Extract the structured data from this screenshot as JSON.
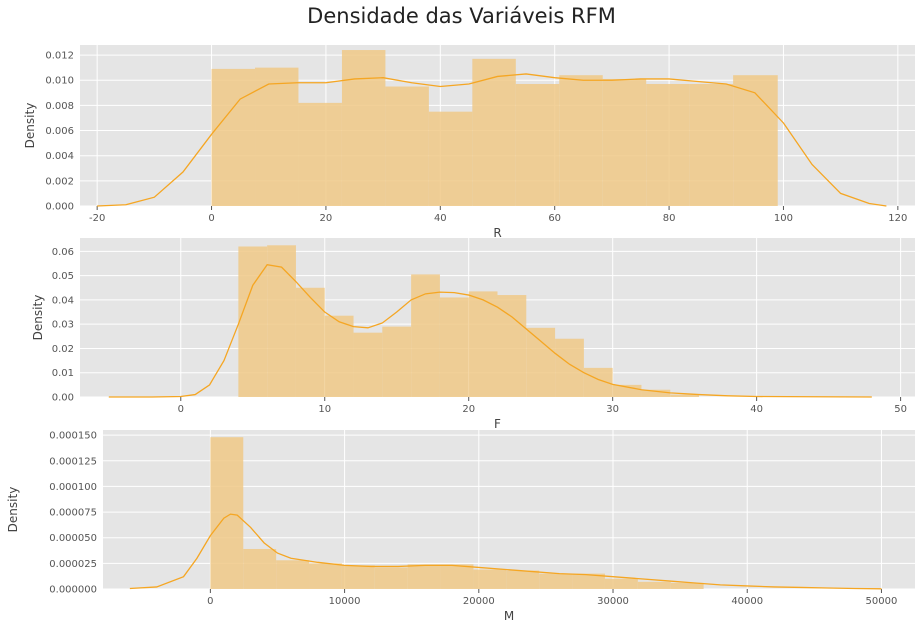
{
  "title": "Densidade das Variáveis RFM",
  "colors": {
    "background": "#e5e5e5",
    "grid": "#ffffff",
    "hist_fill": "#f0c987",
    "kde": "#f5a623",
    "text": "#555555"
  },
  "chart_data": [
    {
      "type": "bar",
      "name": "R",
      "xlabel": "R",
      "ylabel": "Density",
      "xlim": [
        -23,
        123
      ],
      "ylim": [
        0,
        0.0128
      ],
      "xticks": [
        -20,
        0,
        20,
        40,
        60,
        80,
        100,
        120
      ],
      "yticks": [
        0.0,
        0.002,
        0.004,
        0.006,
        0.008,
        0.01,
        0.012
      ],
      "ytick_labels": [
        "0.000",
        "0.002",
        "0.004",
        "0.006",
        "0.008",
        "0.010",
        "0.012"
      ],
      "bins": [
        {
          "x0": 0,
          "x1": 7.6,
          "y": 0.0109
        },
        {
          "x0": 7.6,
          "x1": 15.2,
          "y": 0.011
        },
        {
          "x0": 15.2,
          "x1": 22.8,
          "y": 0.0082
        },
        {
          "x0": 22.8,
          "x1": 30.4,
          "y": 0.0124
        },
        {
          "x0": 30.4,
          "x1": 38.0,
          "y": 0.0095
        },
        {
          "x0": 38.0,
          "x1": 45.6,
          "y": 0.0075
        },
        {
          "x0": 45.6,
          "x1": 53.2,
          "y": 0.0117
        },
        {
          "x0": 53.2,
          "x1": 60.8,
          "y": 0.0097
        },
        {
          "x0": 60.8,
          "x1": 68.4,
          "y": 0.0104
        },
        {
          "x0": 68.4,
          "x1": 76.0,
          "y": 0.0101
        },
        {
          "x0": 76.0,
          "x1": 83.6,
          "y": 0.0097
        },
        {
          "x0": 83.6,
          "x1": 91.2,
          "y": 0.0097
        },
        {
          "x0": 91.2,
          "x1": 99.0,
          "y": 0.0104
        }
      ],
      "kde": [
        [
          -20,
          0.0
        ],
        [
          -15,
          0.0001
        ],
        [
          -10,
          0.0007
        ],
        [
          -5,
          0.0027
        ],
        [
          0,
          0.0057
        ],
        [
          5,
          0.0085
        ],
        [
          10,
          0.0097
        ],
        [
          15,
          0.0098
        ],
        [
          20,
          0.0098
        ],
        [
          25,
          0.0101
        ],
        [
          30,
          0.0102
        ],
        [
          35,
          0.0098
        ],
        [
          40,
          0.0095
        ],
        [
          45,
          0.0097
        ],
        [
          50,
          0.0103
        ],
        [
          55,
          0.0105
        ],
        [
          60,
          0.0102
        ],
        [
          65,
          0.01
        ],
        [
          70,
          0.01
        ],
        [
          75,
          0.0101
        ],
        [
          80,
          0.0101
        ],
        [
          85,
          0.0099
        ],
        [
          90,
          0.0097
        ],
        [
          95,
          0.009
        ],
        [
          100,
          0.0066
        ],
        [
          105,
          0.0033
        ],
        [
          110,
          0.001
        ],
        [
          115,
          0.0002
        ],
        [
          118,
          0.0
        ]
      ]
    },
    {
      "type": "bar",
      "name": "F",
      "xlabel": "F",
      "ylabel": "Density",
      "xlim": [
        -7,
        51
      ],
      "ylim": [
        0,
        0.0655
      ],
      "xticks": [
        0,
        10,
        20,
        30,
        40,
        50
      ],
      "yticks": [
        0.0,
        0.01,
        0.02,
        0.03,
        0.04,
        0.05,
        0.06
      ],
      "ytick_labels": [
        "0.00",
        "0.01",
        "0.02",
        "0.03",
        "0.04",
        "0.05",
        "0.06"
      ],
      "bins": [
        {
          "x0": 4.0,
          "x1": 6.0,
          "y": 0.062
        },
        {
          "x0": 6.0,
          "x1": 8.0,
          "y": 0.0625
        },
        {
          "x0": 8.0,
          "x1": 10.0,
          "y": 0.045
        },
        {
          "x0": 10.0,
          "x1": 12.0,
          "y": 0.0335
        },
        {
          "x0": 12.0,
          "x1": 14.0,
          "y": 0.0265
        },
        {
          "x0": 14.0,
          "x1": 16.0,
          "y": 0.029
        },
        {
          "x0": 16.0,
          "x1": 18.0,
          "y": 0.0505
        },
        {
          "x0": 18.0,
          "x1": 20.0,
          "y": 0.041
        },
        {
          "x0": 20.0,
          "x1": 22.0,
          "y": 0.0435
        },
        {
          "x0": 22.0,
          "x1": 24.0,
          "y": 0.042
        },
        {
          "x0": 24.0,
          "x1": 26.0,
          "y": 0.0285
        },
        {
          "x0": 26.0,
          "x1": 28.0,
          "y": 0.024
        },
        {
          "x0": 28.0,
          "x1": 30.0,
          "y": 0.012
        },
        {
          "x0": 30.0,
          "x1": 32.0,
          "y": 0.005
        },
        {
          "x0": 32.0,
          "x1": 34.0,
          "y": 0.003
        },
        {
          "x0": 34.0,
          "x1": 36.0,
          "y": 0.001
        }
      ],
      "kde": [
        [
          -5,
          0.0
        ],
        [
          -2,
          0.0
        ],
        [
          0,
          0.0002
        ],
        [
          1,
          0.001
        ],
        [
          2,
          0.005
        ],
        [
          3,
          0.015
        ],
        [
          4,
          0.03
        ],
        [
          5,
          0.046
        ],
        [
          6,
          0.0545
        ],
        [
          7,
          0.0535
        ],
        [
          8,
          0.0475
        ],
        [
          9,
          0.041
        ],
        [
          10,
          0.035
        ],
        [
          11,
          0.031
        ],
        [
          12,
          0.029
        ],
        [
          13,
          0.0285
        ],
        [
          14,
          0.0305
        ],
        [
          15,
          0.035
        ],
        [
          16,
          0.04
        ],
        [
          17,
          0.0425
        ],
        [
          18,
          0.0432
        ],
        [
          19,
          0.043
        ],
        [
          20,
          0.042
        ],
        [
          21,
          0.04
        ],
        [
          22,
          0.037
        ],
        [
          23,
          0.033
        ],
        [
          24,
          0.028
        ],
        [
          25,
          0.023
        ],
        [
          26,
          0.018
        ],
        [
          27,
          0.0135
        ],
        [
          28,
          0.01
        ],
        [
          29,
          0.0072
        ],
        [
          30,
          0.0052
        ],
        [
          32,
          0.003
        ],
        [
          34,
          0.0017
        ],
        [
          36,
          0.001
        ],
        [
          38,
          0.0005
        ],
        [
          40,
          0.0002
        ],
        [
          44,
          0.0001
        ],
        [
          48,
          0.0
        ]
      ]
    },
    {
      "type": "bar",
      "name": "M",
      "xlabel": "M",
      "ylabel": "Density",
      "xlim": [
        -8000,
        52500
      ],
      "ylim": [
        0,
        0.000155
      ],
      "xticks": [
        0,
        10000,
        20000,
        30000,
        40000,
        50000
      ],
      "yticks": [
        0.0,
        2.5e-05,
        5e-05,
        7.5e-05,
        0.0001,
        0.000125,
        0.00015
      ],
      "ytick_labels": [
        "0.000000",
        "0.000025",
        "0.000050",
        "0.000075",
        "0.000100",
        "0.000125",
        "0.000150"
      ],
      "bins": [
        {
          "x0": 0,
          "x1": 2450,
          "y": 0.000148
        },
        {
          "x0": 2450,
          "x1": 4900,
          "y": 3.9e-05
        },
        {
          "x0": 4900,
          "x1": 7350,
          "y": 2.8e-05
        },
        {
          "x0": 7350,
          "x1": 9800,
          "y": 2.5e-05
        },
        {
          "x0": 9800,
          "x1": 12250,
          "y": 2.3e-05
        },
        {
          "x0": 12250,
          "x1": 14700,
          "y": 2.1e-05
        },
        {
          "x0": 14700,
          "x1": 17150,
          "y": 2.4e-05
        },
        {
          "x0": 17150,
          "x1": 19600,
          "y": 2.4e-05
        },
        {
          "x0": 19600,
          "x1": 22050,
          "y": 1.9e-05
        },
        {
          "x0": 22050,
          "x1": 24500,
          "y": 1.8e-05
        },
        {
          "x0": 24500,
          "x1": 26950,
          "y": 1.5e-05
        },
        {
          "x0": 26950,
          "x1": 29400,
          "y": 1.5e-05
        },
        {
          "x0": 29400,
          "x1": 31850,
          "y": 1e-05
        },
        {
          "x0": 31850,
          "x1": 34300,
          "y": 7e-06
        },
        {
          "x0": 34300,
          "x1": 36750,
          "y": 6e-06
        }
      ],
      "kde": [
        [
          -6000,
          5e-07
        ],
        [
          -4000,
          2e-06
        ],
        [
          -2000,
          1.2e-05
        ],
        [
          -1000,
          3e-05
        ],
        [
          0,
          5.2e-05
        ],
        [
          1000,
          6.9e-05
        ],
        [
          1500,
          7.3e-05
        ],
        [
          2000,
          7.2e-05
        ],
        [
          3000,
          6e-05
        ],
        [
          4000,
          4.5e-05
        ],
        [
          5000,
          3.5e-05
        ],
        [
          6000,
          3e-05
        ],
        [
          8000,
          2.6e-05
        ],
        [
          10000,
          2.3e-05
        ],
        [
          12000,
          2.2e-05
        ],
        [
          14000,
          2.2e-05
        ],
        [
          16000,
          2.3e-05
        ],
        [
          18000,
          2.3e-05
        ],
        [
          20000,
          2.1e-05
        ],
        [
          22000,
          1.9e-05
        ],
        [
          24000,
          1.7e-05
        ],
        [
          26000,
          1.5e-05
        ],
        [
          28000,
          1.4e-05
        ],
        [
          30000,
          1.2e-05
        ],
        [
          32000,
          1e-05
        ],
        [
          34000,
          8e-06
        ],
        [
          36000,
          6e-06
        ],
        [
          38000,
          4e-06
        ],
        [
          40000,
          3e-06
        ],
        [
          42000,
          2e-06
        ],
        [
          44000,
          1.5e-06
        ],
        [
          46000,
          1e-06
        ],
        [
          48000,
          5e-07
        ],
        [
          50000,
          2e-07
        ]
      ]
    }
  ]
}
